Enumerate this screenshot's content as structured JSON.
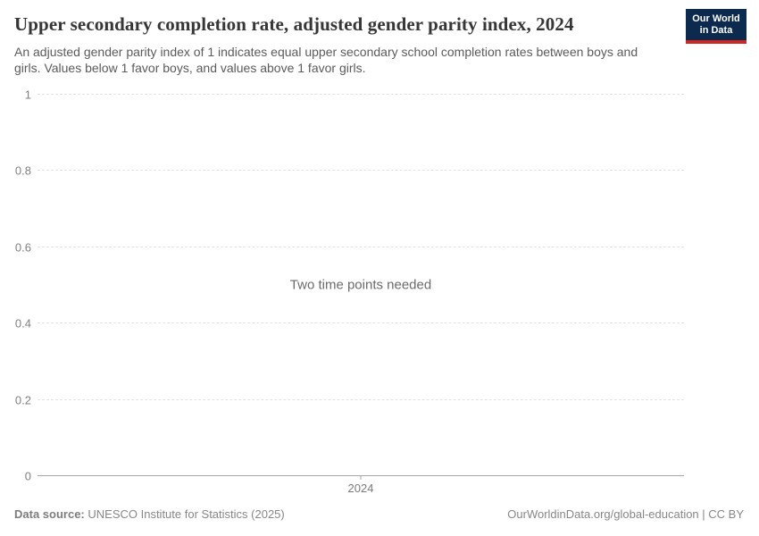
{
  "header": {
    "title": "Upper secondary completion rate, adjusted gender parity index, 2024",
    "subtitle": "An adjusted gender parity index of 1 indicates equal upper secondary school completion rates between boys and girls. Values below 1 favor boys, and values above 1 favor girls.",
    "logo": {
      "line1": "Our World",
      "line2": "in Data"
    }
  },
  "chart_data": {
    "type": "line",
    "title": "Upper secondary completion rate, adjusted gender parity index, 2024",
    "series": [],
    "empty_message": "Two time points needed",
    "xlabel": "",
    "ylabel": "",
    "ylim": [
      0,
      1
    ],
    "yticks": [
      0,
      0.2,
      0.4,
      0.6,
      0.8,
      1
    ],
    "ytick_labels": [
      "0",
      "0.2",
      "0.4",
      "0.6",
      "0.8",
      "1"
    ],
    "xticks": [
      2024
    ],
    "xtick_labels": [
      "2024"
    ],
    "grid": "dashed horizontal gridlines, solid baseline at 0",
    "legend": "none"
  },
  "footer": {
    "datasource_label": "Data source:",
    "datasource_value": "UNESCO Institute for Statistics (2025)",
    "attribution": "OurWorldinData.org/global-education | CC BY"
  },
  "colors": {
    "logo_bg": "#0b2a4e",
    "logo_accent": "#cf2722",
    "title_text": "#363636",
    "subtitle_text": "#5b5b5b",
    "gridline": "#e2e2e2",
    "axis_line": "#a6a6a6",
    "tick_text": "#818181",
    "footer_text": "#878787"
  }
}
